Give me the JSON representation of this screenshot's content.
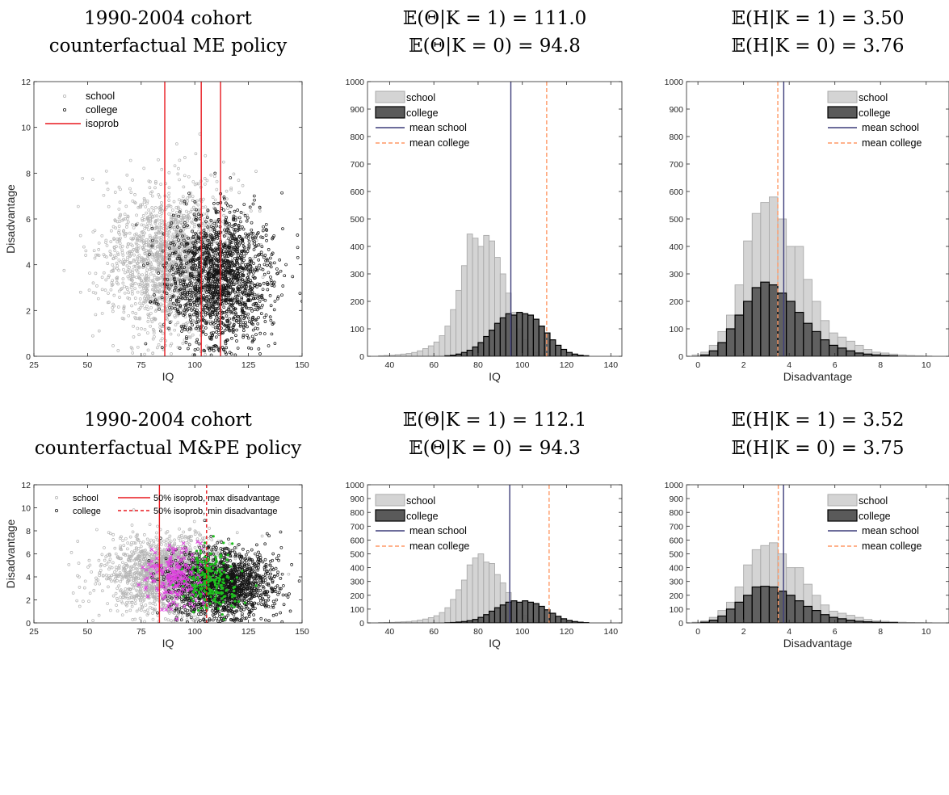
{
  "panels": [
    {
      "title_lines": [
        "1990-2004 cohort",
        "counterfactual ME policy"
      ],
      "chart_data": {
        "type": "scatter",
        "xlabel": "IQ",
        "ylabel": "Disadvantage",
        "xlim": [
          25,
          150
        ],
        "ylim": [
          0,
          12
        ],
        "xticks": [
          "25",
          "50",
          "75",
          "100",
          "125",
          "150"
        ],
        "yticks": [
          "0",
          "2",
          "4",
          "6",
          "8",
          "10",
          "12"
        ],
        "series": [
          {
            "name": "school",
            "color": "#b4b4b4",
            "center": [
              88,
              4.2
            ],
            "spread": [
              15,
              1.6
            ],
            "count": 1700
          },
          {
            "name": "college",
            "color": "#141414",
            "center": [
              112,
              3.4
            ],
            "spread": [
              12,
              1.4
            ],
            "count": 1600
          }
        ],
        "isoprob_lines": [
          {
            "name": "isoprob",
            "x": [
              86,
              103,
              112
            ],
            "style": "solid",
            "color": "#e8181e"
          }
        ],
        "legend": [
          "school",
          "college",
          "isoprob"
        ],
        "legend_position": "top-left"
      }
    },
    {
      "title_lines": [
        "𝔼(Θ|K = 1) = 111.0",
        "𝔼(Θ|K = 0) = 94.8"
      ],
      "chart_data": {
        "type": "histogram",
        "xlabel": "IQ",
        "ylabel": "",
        "xlim": [
          30,
          145
        ],
        "ylim": [
          0,
          1000
        ],
        "xticks": [
          "40",
          "60",
          "80",
          "100",
          "120",
          "140"
        ],
        "yticks": [
          "0",
          "100",
          "200",
          "300",
          "400",
          "500",
          "600",
          "700",
          "800",
          "900",
          "1000"
        ],
        "bin_start": 30,
        "bin_width": 2.5,
        "series": [
          {
            "name": "school",
            "values": [
              0,
              0,
              2,
              3,
              4,
              6,
              8,
              10,
              14,
              20,
              28,
              38,
              52,
              75,
              110,
              170,
              240,
              330,
              445,
              430,
              400,
              440,
              420,
              360,
              300,
              230,
              160,
              100,
              60,
              30,
              15,
              8,
              3,
              1,
              0,
              0,
              0,
              0,
              0,
              0,
              0,
              0,
              0,
              0,
              0,
              0
            ]
          },
          {
            "name": "college",
            "values": [
              0,
              0,
              0,
              0,
              0,
              0,
              0,
              0,
              0,
              0,
              0,
              0,
              0,
              0,
              2,
              4,
              8,
              14,
              22,
              34,
              50,
              72,
              95,
              120,
              140,
              155,
              150,
              160,
              155,
              150,
              135,
              110,
              85,
              60,
              40,
              25,
              14,
              8,
              4,
              2,
              0,
              0,
              0,
              0,
              0,
              0
            ]
          }
        ],
        "mean_lines": [
          {
            "name": "mean school",
            "x": 94.8,
            "style": "solid",
            "color": "#3d3d7a"
          },
          {
            "name": "mean college",
            "x": 111.0,
            "style": "dashed",
            "color": "#ff9966"
          }
        ],
        "legend": [
          "school",
          "college",
          "mean school",
          "mean college"
        ],
        "legend_position": "top-left"
      }
    },
    {
      "title_lines": [
        "𝔼(H|K = 1) = 3.50",
        "𝔼(H|K = 0) = 3.76"
      ],
      "chart_data": {
        "type": "histogram",
        "xlabel": "Disadvantage",
        "ylabel": "",
        "xlim": [
          -0.5,
          11
        ],
        "ylim": [
          0,
          1000
        ],
        "xticks": [
          "0",
          "2",
          "4",
          "6",
          "8",
          "10"
        ],
        "yticks": [
          "0",
          "100",
          "200",
          "300",
          "400",
          "500",
          "600",
          "700",
          "800",
          "900",
          "1000"
        ],
        "bin_start": -0.25,
        "bin_width": 0.375,
        "series": [
          {
            "name": "school",
            "values": [
              5,
              15,
              40,
              90,
              150,
              260,
              420,
              520,
              560,
              580,
              500,
              400,
              400,
              280,
              200,
              130,
              85,
              70,
              55,
              40,
              25,
              15,
              12,
              8,
              5,
              3,
              2,
              1,
              0,
              0
            ]
          },
          {
            "name": "college",
            "values": [
              0,
              5,
              20,
              50,
              100,
              150,
              200,
              250,
              270,
              260,
              230,
              200,
              160,
              120,
              90,
              60,
              40,
              30,
              20,
              12,
              8,
              5,
              3,
              2,
              0,
              0,
              0,
              0,
              0,
              0
            ]
          }
        ],
        "mean_lines": [
          {
            "name": "mean school",
            "x": 3.76,
            "style": "solid",
            "color": "#3d3d7a"
          },
          {
            "name": "mean college",
            "x": 3.5,
            "style": "dashed",
            "color": "#ff9966"
          }
        ],
        "legend": [
          "school",
          "college",
          "mean school",
          "mean college"
        ],
        "legend_position": "top-right"
      }
    },
    {
      "title_lines": [
        "1990-2004 cohort",
        "counterfactual M&PE policy"
      ],
      "chart_data": {
        "type": "scatter",
        "xlabel": "IQ",
        "ylabel": "Disadvantage",
        "xlim": [
          25,
          150
        ],
        "ylim": [
          0,
          12
        ],
        "xticks": [
          "25",
          "50",
          "75",
          "100",
          "125",
          "150"
        ],
        "yticks": [
          "0",
          "2",
          "4",
          "6",
          "8",
          "10",
          "12"
        ],
        "series": [
          {
            "name": "school",
            "color": "#b4b4b4",
            "center": [
              88,
              4.2
            ],
            "spread": [
              15,
              1.6
            ],
            "count": 1700
          },
          {
            "name": "college",
            "color": "#141414",
            "center": [
              113,
              3.4
            ],
            "spread": [
              12,
              1.4
            ],
            "count": 1600
          },
          {
            "name": "",
            "color": "#e040e0",
            "center": [
              92,
              4.0
            ],
            "spread": [
              6,
              1.3
            ],
            "count": 200
          },
          {
            "name": "",
            "color": "#1ebe1e",
            "center": [
              108,
              3.6
            ],
            "spread": [
              6,
              1.3
            ],
            "count": 220
          }
        ],
        "isoprob_lines": [
          {
            "name": "50% isoprob, max disadvantage",
            "x": [
              83.5
            ],
            "style": "solid",
            "color": "#e8181e"
          },
          {
            "name": "50% isoprob, min disadvantage",
            "x": [
              105.5
            ],
            "style": "dashed",
            "color": "#e8181e"
          }
        ],
        "legend": [
          "school",
          "college",
          "50% isoprob, max disadvantage",
          "50% isoprob, min disadvantage"
        ],
        "legend_position": "top"
      }
    },
    {
      "title_lines": [
        "𝔼(Θ|K = 1) = 112.1",
        "𝔼(Θ|K = 0) = 94.3"
      ],
      "chart_data": {
        "type": "histogram",
        "xlabel": "IQ",
        "ylabel": "",
        "xlim": [
          30,
          145
        ],
        "ylim": [
          0,
          1000
        ],
        "xticks": [
          "40",
          "60",
          "80",
          "100",
          "120",
          "140"
        ],
        "yticks": [
          "0",
          "100",
          "200",
          "300",
          "400",
          "500",
          "600",
          "700",
          "800",
          "900",
          "1000"
        ],
        "bin_start": 30,
        "bin_width": 2.5,
        "series": [
          {
            "name": "school",
            "values": [
              0,
              0,
              2,
              3,
              4,
              6,
              8,
              10,
              14,
              20,
              28,
              38,
              52,
              75,
              110,
              170,
              240,
              310,
              420,
              470,
              500,
              440,
              430,
              350,
              290,
              220,
              150,
              95,
              55,
              28,
              14,
              7,
              3,
              1,
              0,
              0,
              0,
              0,
              0,
              0,
              0,
              0,
              0,
              0,
              0,
              0
            ]
          },
          {
            "name": "college",
            "values": [
              0,
              0,
              0,
              0,
              0,
              0,
              0,
              0,
              0,
              0,
              0,
              0,
              0,
              0,
              1,
              3,
              6,
              10,
              16,
              25,
              40,
              60,
              85,
              110,
              130,
              150,
              160,
              150,
              160,
              150,
              140,
              120,
              95,
              70,
              48,
              30,
              18,
              10,
              5,
              2,
              0,
              0,
              0,
              0,
              0,
              0
            ]
          }
        ],
        "mean_lines": [
          {
            "name": "mean school",
            "x": 94.3,
            "style": "solid",
            "color": "#3d3d7a"
          },
          {
            "name": "mean college",
            "x": 112.1,
            "style": "dashed",
            "color": "#ff9966"
          }
        ],
        "legend": [
          "school",
          "college",
          "mean school",
          "mean college"
        ],
        "legend_position": "top-left"
      }
    },
    {
      "title_lines": [
        "𝔼(H|K = 1) = 3.52",
        "𝔼(H|K = 0) = 3.75"
      ],
      "chart_data": {
        "type": "histogram",
        "xlabel": "Disadvantage",
        "ylabel": "",
        "xlim": [
          -0.5,
          11
        ],
        "ylim": [
          0,
          1000
        ],
        "xticks": [
          "0",
          "2",
          "4",
          "6",
          "8",
          "10"
        ],
        "yticks": [
          "0",
          "100",
          "200",
          "300",
          "400",
          "500",
          "600",
          "700",
          "800",
          "900",
          "1000"
        ],
        "bin_start": -0.25,
        "bin_width": 0.375,
        "series": [
          {
            "name": "school",
            "values": [
              5,
              15,
              40,
              90,
              150,
              260,
              420,
              530,
              560,
              580,
              500,
              400,
              400,
              280,
              200,
              130,
              85,
              70,
              55,
              40,
              25,
              15,
              12,
              8,
              5,
              3,
              2,
              1,
              0,
              0
            ]
          },
          {
            "name": "college",
            "values": [
              0,
              5,
              20,
              50,
              100,
              150,
              200,
              260,
              265,
              260,
              230,
              200,
              160,
              120,
              90,
              60,
              40,
              30,
              20,
              12,
              8,
              5,
              3,
              2,
              0,
              0,
              0,
              0,
              0,
              0
            ]
          }
        ],
        "mean_lines": [
          {
            "name": "mean school",
            "x": 3.75,
            "style": "solid",
            "color": "#3d3d7a"
          },
          {
            "name": "mean college",
            "x": 3.52,
            "style": "dashed",
            "color": "#ff9966"
          }
        ],
        "legend": [
          "school",
          "college",
          "mean school",
          "mean college"
        ],
        "legend_position": "top-right"
      }
    }
  ]
}
